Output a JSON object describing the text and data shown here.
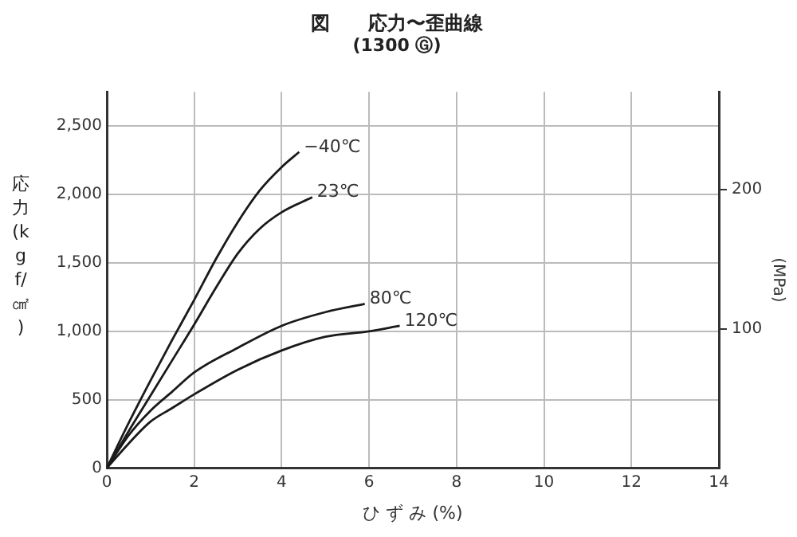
{
  "chart_data": {
    "type": "line",
    "title": "図　　応力〜歪曲線",
    "subtitle": "(1300 Ⓖ)",
    "xlabel": "ひ ず み (%)",
    "ylabel": "応力(kgf/㎠)",
    "y2label": "(MPa)",
    "xlim": [
      0,
      14
    ],
    "xticks": [
      0,
      2,
      4,
      6,
      8,
      10,
      12,
      14
    ],
    "ylim": [
      0,
      2750
    ],
    "yticks": [
      0,
      500,
      {
        "value": 1000,
        "label": "1,000"
      },
      {
        "value": 1500,
        "label": "1,500"
      },
      {
        "value": 2000,
        "label": "2,000"
      },
      {
        "value": 2500,
        "label": "2,500"
      }
    ],
    "y2lim": [
      0,
      270
    ],
    "y2ticks": [
      100,
      200
    ],
    "grid": true,
    "series": [
      {
        "name": "−40℃",
        "color": "#1a1a1a",
        "x": [
          0,
          0.5,
          1,
          1.5,
          2,
          2.5,
          3,
          3.5,
          4,
          4.4
        ],
        "values": [
          0,
          330,
          640,
          940,
          1230,
          1530,
          1800,
          2030,
          2200,
          2310
        ]
      },
      {
        "name": "23℃",
        "color": "#1a1a1a",
        "x": [
          0,
          0.5,
          1,
          1.5,
          2,
          2.5,
          3,
          3.5,
          4,
          4.7
        ],
        "values": [
          0,
          270,
          530,
          790,
          1050,
          1320,
          1570,
          1750,
          1870,
          1980
        ]
      },
      {
        "name": "80℃",
        "color": "#1a1a1a",
        "x": [
          0,
          0.5,
          1,
          1.5,
          2,
          3,
          4,
          5,
          5.9
        ],
        "values": [
          0,
          240,
          420,
          560,
          700,
          880,
          1040,
          1140,
          1200
        ]
      },
      {
        "name": "120℃",
        "color": "#1a1a1a",
        "x": [
          0,
          0.5,
          1,
          1.5,
          2,
          3,
          4,
          5,
          6,
          6.7
        ],
        "values": [
          0,
          180,
          340,
          440,
          540,
          720,
          860,
          960,
          1000,
          1040
        ]
      }
    ]
  }
}
